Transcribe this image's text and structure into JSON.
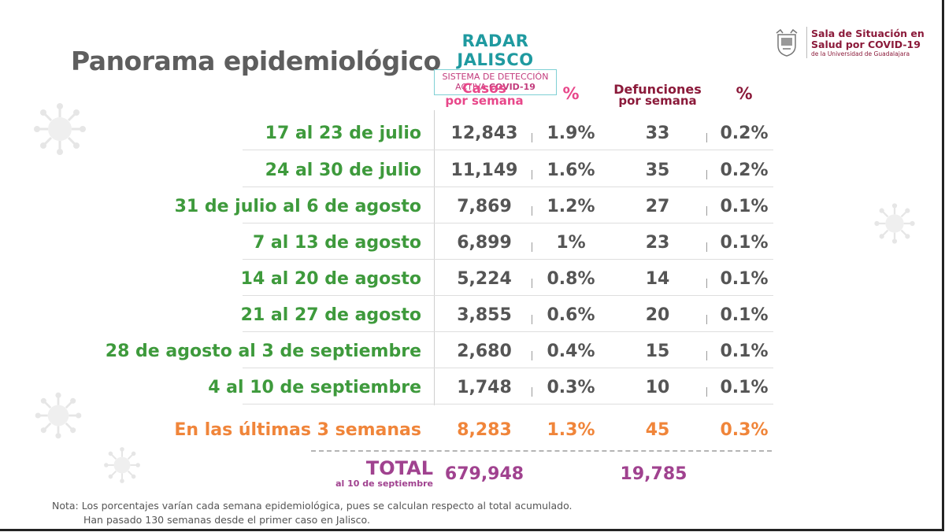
{
  "title": "Panorama epidemiológico",
  "radar": {
    "name": "RADAR JALISCO",
    "line1": "SISTEMA DE DETECCIÓN",
    "line2a": "ACTIVA ",
    "line2b": "COVID-19"
  },
  "logo": {
    "line1": "Sala de Situación en",
    "line2": "Salud por COVID-19",
    "line3": "de la Universidad de Guadalajara"
  },
  "headers": {
    "casos_l1": "Casos",
    "casos_l2": "por semana",
    "pct": "%",
    "def_l1": "Defunciones",
    "def_l2": "por semana"
  },
  "rows": [
    {
      "label": "17 al 23 de julio",
      "casos": "12,843",
      "pct_casos": "1.9%",
      "defunciones": "33",
      "pct_def": "0.2%"
    },
    {
      "label": "24 al 30 de julio",
      "casos": "11,149",
      "pct_casos": "1.6%",
      "defunciones": "35",
      "pct_def": "0.2%"
    },
    {
      "label": "31 de julio al 6 de agosto",
      "casos": "7,869",
      "pct_casos": "1.2%",
      "defunciones": "27",
      "pct_def": "0.1%"
    },
    {
      "label": "7 al 13 de agosto",
      "casos": "6,899",
      "pct_casos": "1%",
      "defunciones": "23",
      "pct_def": "0.1%"
    },
    {
      "label": "14 al 20 de agosto",
      "casos": "5,224",
      "pct_casos": "0.8%",
      "defunciones": "14",
      "pct_def": "0.1%"
    },
    {
      "label": "21 al 27 de agosto",
      "casos": "3,855",
      "pct_casos": "0.6%",
      "defunciones": "20",
      "pct_def": "0.1%"
    },
    {
      "label": "28 de agosto al 3 de septiembre",
      "casos": "2,680",
      "pct_casos": "0.4%",
      "defunciones": "15",
      "pct_def": "0.1%"
    },
    {
      "label": "4 al 10 de septiembre",
      "casos": "1,748",
      "pct_casos": "0.3%",
      "defunciones": "10",
      "pct_def": "0.1%"
    }
  ],
  "summary": {
    "label": "En las últimas 3 semanas",
    "casos": "8,283",
    "pct_casos": "1.3%",
    "defunciones": "45",
    "pct_def": "0.3%"
  },
  "total": {
    "label": "TOTAL",
    "sublabel": "al 10 de septiembre",
    "casos": "679,948",
    "defunciones": "19,785"
  },
  "note": {
    "line1": "Nota: Los porcentajes varían cada semana epidemiológica, pues se calculan respecto al total acumulado.",
    "line2": "Han pasado 130 semanas desde el primer caso en Jalisco."
  },
  "colors": {
    "green": "#3e9a3c",
    "orange": "#f0853a",
    "pink": "#e8478a",
    "maroon": "#8b1a3a",
    "purple": "#a0428f",
    "teal": "#1f9aa0"
  }
}
